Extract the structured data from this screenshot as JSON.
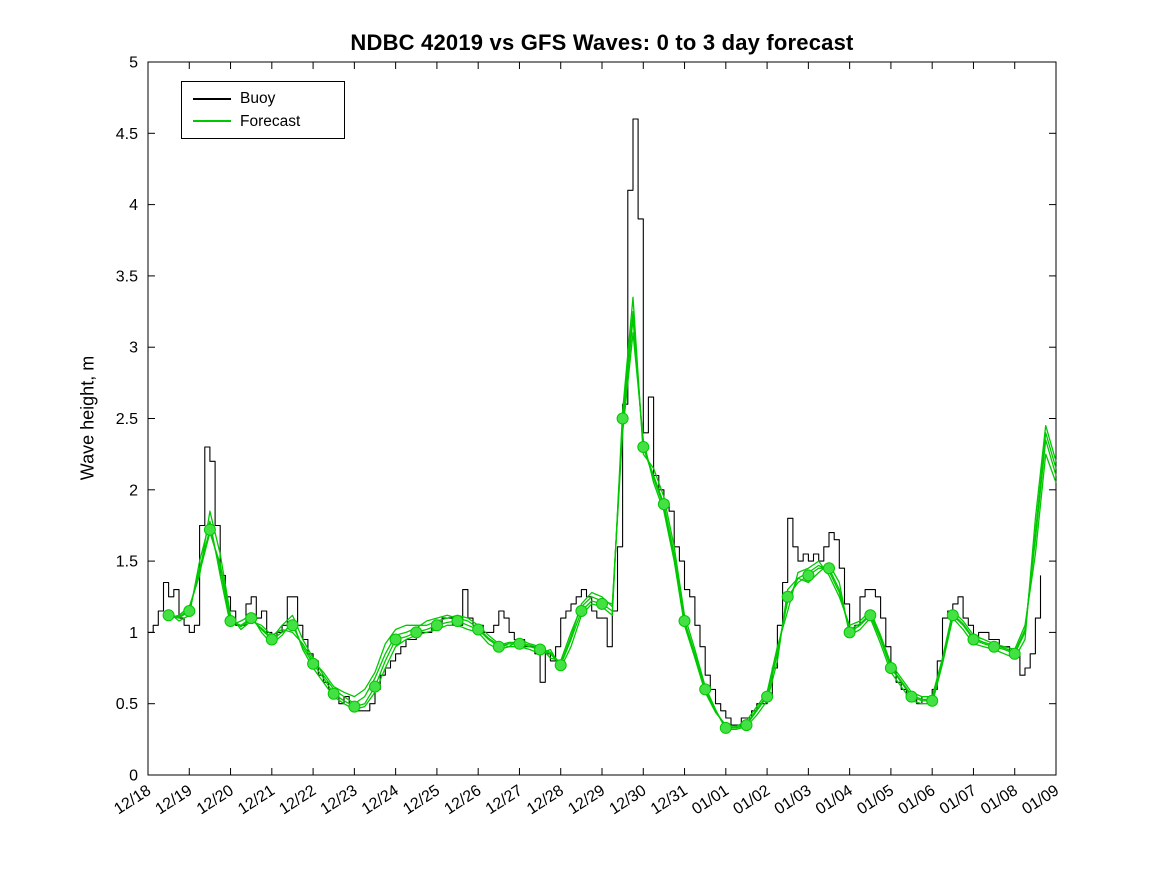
{
  "colors": {
    "background": "#ffffff",
    "axis": "#000000",
    "buoy": "#000000",
    "forecast": "#00c800",
    "marker_fill": "#44e144"
  },
  "chart_data": {
    "type": "line",
    "title": "NDBC 42019 vs GFS Waves: 0 to 3 day forecast",
    "xlabel": "",
    "ylabel": "Wave height, m",
    "ylim": [
      0,
      5
    ],
    "xlim": [
      0,
      22
    ],
    "grid": false,
    "legend": {
      "position": "top-left",
      "entries": [
        "Buoy",
        "Forecast"
      ]
    },
    "y_ticks": [
      0,
      0.5,
      1,
      1.5,
      2,
      2.5,
      3,
      3.5,
      4,
      4.5,
      5
    ],
    "x_tick_positions": [
      0,
      1,
      2,
      3,
      4,
      5,
      6,
      7,
      8,
      9,
      10,
      11,
      12,
      13,
      14,
      15,
      16,
      17,
      18,
      19,
      20,
      21,
      22
    ],
    "x_tick_labels": [
      "12/18",
      "12/19",
      "12/20",
      "12/21",
      "12/22",
      "12/23",
      "12/24",
      "12/25",
      "12/26",
      "12/27",
      "12/28",
      "12/29",
      "12/30",
      "12/31",
      "01/01",
      "01/02",
      "01/03",
      "01/04",
      "01/05",
      "01/06",
      "01/07",
      "01/08",
      "01/09"
    ],
    "x_units": "days since 12/18 00Z",
    "series": [
      {
        "name": "Buoy",
        "color": "buoy",
        "step": true,
        "line_width": 1.1,
        "t_start": 0,
        "t_step": 0.125,
        "values": [
          1.0,
          1.05,
          1.15,
          1.35,
          1.25,
          1.3,
          1.1,
          1.05,
          1.0,
          1.05,
          1.75,
          2.3,
          2.2,
          1.75,
          1.4,
          1.25,
          1.15,
          1.05,
          1.05,
          1.2,
          1.25,
          1.1,
          1.15,
          1.0,
          0.95,
          1.0,
          1.05,
          1.25,
          1.25,
          1.05,
          0.95,
          0.85,
          0.8,
          0.7,
          0.65,
          0.6,
          0.55,
          0.5,
          0.55,
          0.5,
          0.45,
          0.45,
          0.45,
          0.5,
          0.6,
          0.7,
          0.75,
          0.8,
          0.85,
          0.9,
          0.95,
          0.95,
          1.0,
          1.0,
          1.0,
          1.05,
          1.05,
          1.1,
          1.1,
          1.05,
          1.05,
          1.3,
          1.1,
          1.05,
          1.05,
          1.0,
          1.0,
          1.05,
          1.15,
          1.1,
          1.0,
          0.95,
          0.95,
          0.9,
          0.9,
          0.85,
          0.65,
          0.85,
          0.8,
          0.9,
          1.1,
          1.15,
          1.2,
          1.25,
          1.3,
          1.25,
          1.15,
          1.1,
          1.1,
          0.9,
          1.15,
          1.6,
          2.6,
          4.1,
          4.6,
          3.9,
          2.4,
          2.65,
          2.1,
          2.0,
          1.9,
          1.85,
          1.6,
          1.5,
          1.3,
          1.25,
          1.05,
          0.9,
          0.7,
          0.6,
          0.5,
          0.45,
          0.4,
          0.35,
          0.35,
          0.4,
          0.4,
          0.45,
          0.5,
          0.5,
          0.55,
          0.75,
          1.05,
          1.35,
          1.8,
          1.6,
          1.5,
          1.55,
          1.5,
          1.55,
          1.5,
          1.6,
          1.7,
          1.65,
          1.45,
          1.2,
          1.0,
          1.05,
          1.25,
          1.3,
          1.3,
          1.25,
          1.1,
          0.9,
          0.75,
          0.65,
          0.6,
          0.55,
          0.55,
          0.5,
          0.55,
          0.55,
          0.6,
          0.8,
          1.1,
          1.15,
          1.2,
          1.25,
          1.1,
          1.05,
          0.95,
          1.0,
          1.0,
          0.95,
          0.95,
          0.9,
          0.9,
          0.85,
          0.85,
          0.7,
          0.75,
          0.85,
          1.1,
          1.4
        ]
      },
      {
        "name": "Forecast 1",
        "color": "forecast",
        "step": false,
        "line_width": 1.3,
        "t_start": 0.5,
        "t_step": 0.25,
        "markers_every": 2,
        "marker_t_max": 21,
        "values": [
          1.12,
          1.1,
          1.15,
          1.45,
          1.72,
          1.45,
          1.08,
          1.05,
          1.1,
          1.02,
          0.95,
          1.0,
          1.05,
          0.9,
          0.78,
          0.68,
          0.57,
          0.52,
          0.48,
          0.5,
          0.62,
          0.8,
          0.95,
          0.97,
          1.0,
          1.02,
          1.05,
          1.07,
          1.08,
          1.05,
          1.02,
          0.95,
          0.9,
          0.92,
          0.92,
          0.9,
          0.88,
          0.85,
          0.77,
          0.95,
          1.15,
          1.22,
          1.2,
          1.15,
          2.5,
          3.25,
          2.3,
          2.1,
          1.9,
          1.55,
          1.08,
          0.85,
          0.6,
          0.45,
          0.33,
          0.33,
          0.35,
          0.45,
          0.55,
          0.85,
          1.25,
          1.35,
          1.4,
          1.45,
          1.45,
          1.3,
          1.0,
          1.05,
          1.12,
          0.95,
          0.75,
          0.65,
          0.55,
          0.52,
          0.52,
          0.8,
          1.12,
          1.05,
          0.95,
          0.92,
          0.9,
          0.88,
          0.85,
          1.0,
          1.7,
          2.4,
          2.15
        ]
      },
      {
        "name": "Forecast 2",
        "color": "forecast",
        "step": false,
        "line_width": 1.3,
        "t_start": 0.5,
        "t_step": 0.25,
        "values": [
          1.1,
          1.12,
          1.18,
          1.4,
          1.85,
          1.55,
          1.12,
          1.02,
          1.08,
          1.05,
          0.98,
          1.02,
          1.0,
          0.92,
          0.8,
          0.72,
          0.62,
          0.58,
          0.55,
          0.6,
          0.72,
          0.92,
          1.02,
          1.05,
          1.05,
          1.05,
          1.08,
          1.1,
          1.12,
          1.1,
          1.05,
          0.98,
          0.92,
          0.9,
          0.95,
          0.92,
          0.9,
          0.82,
          0.8,
          1.0,
          1.18,
          1.25,
          1.22,
          1.2,
          2.4,
          3.1,
          2.35,
          2.05,
          1.85,
          1.5,
          1.05,
          0.82,
          0.58,
          0.44,
          0.35,
          0.34,
          0.38,
          0.48,
          0.58,
          0.9,
          1.15,
          1.42,
          1.45,
          1.5,
          1.4,
          1.25,
          1.05,
          1.08,
          1.15,
          0.98,
          0.78,
          0.68,
          0.58,
          0.55,
          0.55,
          0.82,
          1.15,
          1.08,
          0.98,
          0.95,
          0.92,
          0.9,
          0.88,
          1.05,
          1.55,
          2.25,
          2.05
        ]
      },
      {
        "name": "Forecast 3",
        "color": "forecast",
        "step": false,
        "line_width": 1.3,
        "t_start": 0.5,
        "t_step": 0.25,
        "values": [
          1.14,
          1.08,
          1.12,
          1.5,
          1.78,
          1.4,
          1.05,
          1.08,
          1.12,
          1.0,
          0.92,
          0.98,
          1.08,
          0.88,
          0.75,
          0.65,
          0.55,
          0.5,
          0.46,
          0.48,
          0.58,
          0.75,
          0.9,
          0.95,
          0.98,
          1.0,
          1.02,
          1.05,
          1.05,
          1.02,
          1.0,
          0.92,
          0.88,
          0.9,
          0.9,
          0.88,
          0.85,
          0.88,
          0.75,
          0.9,
          1.12,
          1.2,
          1.18,
          1.12,
          2.55,
          3.35,
          2.25,
          2.15,
          1.95,
          1.6,
          1.12,
          0.88,
          0.62,
          0.46,
          0.32,
          0.32,
          0.34,
          0.42,
          0.52,
          0.8,
          1.3,
          1.38,
          1.35,
          1.42,
          1.48,
          1.35,
          0.98,
          1.02,
          1.1,
          0.92,
          0.72,
          0.62,
          0.52,
          0.5,
          0.5,
          0.78,
          1.1,
          1.02,
          0.92,
          0.9,
          0.88,
          0.85,
          0.82,
          0.95,
          1.8,
          2.45,
          2.2
        ]
      },
      {
        "name": "Forecast 4",
        "color": "forecast",
        "step": false,
        "line_width": 1.3,
        "t_start": 0.5,
        "t_step": 0.25,
        "values": [
          1.12,
          1.11,
          1.16,
          1.42,
          1.7,
          1.48,
          1.1,
          1.04,
          1.09,
          1.03,
          0.96,
          1.05,
          1.12,
          0.95,
          0.82,
          0.7,
          0.6,
          0.55,
          0.5,
          0.55,
          0.68,
          0.85,
          0.98,
          1.0,
          1.03,
          1.08,
          1.1,
          1.12,
          1.1,
          1.08,
          1.03,
          0.96,
          0.91,
          0.93,
          0.93,
          0.91,
          0.89,
          0.86,
          0.78,
          0.97,
          1.2,
          1.28,
          1.25,
          1.18,
          2.45,
          3.2,
          2.3,
          2.08,
          1.88,
          1.52,
          1.06,
          0.84,
          0.59,
          0.45,
          0.34,
          0.33,
          0.36,
          0.46,
          0.56,
          0.87,
          1.22,
          1.38,
          1.42,
          1.47,
          1.43,
          1.28,
          1.02,
          1.06,
          1.13,
          0.96,
          0.76,
          0.66,
          0.56,
          0.53,
          0.53,
          0.81,
          1.13,
          1.06,
          0.96,
          0.93,
          0.91,
          0.89,
          0.86,
          1.02,
          1.65,
          2.35,
          2.1
        ]
      }
    ]
  }
}
